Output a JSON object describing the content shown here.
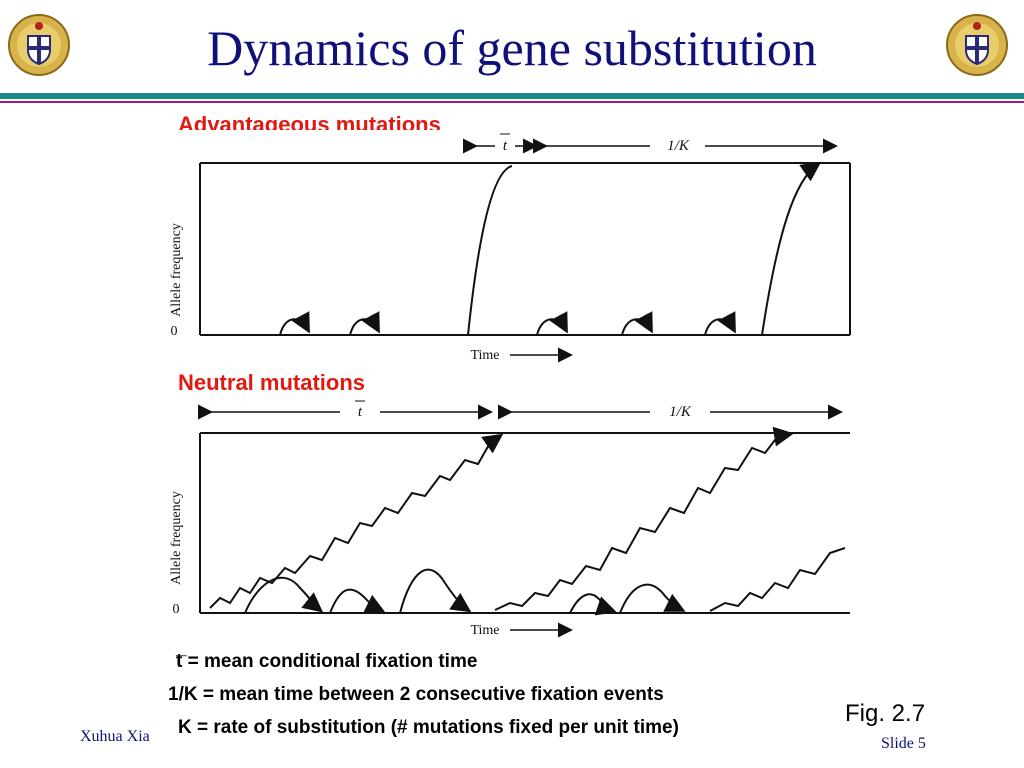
{
  "slide": {
    "title": "Dynamics of gene substitution",
    "author": "Xuhua Xia",
    "slide_number": "Slide 5",
    "figure_label": "Fig. 2.7"
  },
  "panels": [
    {
      "heading": "Advantageous mutations",
      "ylabel": "Allele frequency",
      "y_zero": "0",
      "xlabel": "Time",
      "top_interval": "t",
      "top_interval_right": "1/K"
    },
    {
      "heading": "Neutral mutations",
      "ylabel": "Allele frequency",
      "y_zero": "0",
      "xlabel": "Time",
      "top_interval": "t",
      "top_interval_right": "1/K"
    }
  ],
  "definitions": {
    "t_bar": "_",
    "t_line": "t = mean conditional fixation time",
    "k_interval": "1/K = mean time between 2 consecutive fixation events",
    "k_rate": "K = rate of substitution (# mutations fixed per unit time)"
  },
  "colors": {
    "title": "#10107a",
    "heading": "#e01a10",
    "rule_teal": "#1c8a8a",
    "rule_magenta": "#a01a8a"
  },
  "icons": {
    "crest": "university-crest-icon"
  }
}
